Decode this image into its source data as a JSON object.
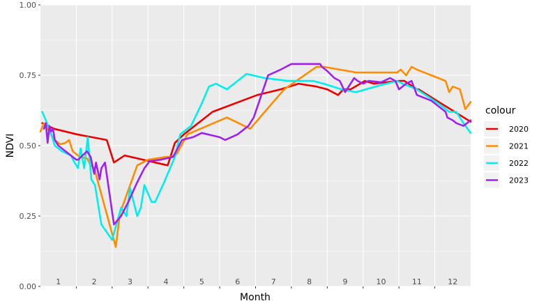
{
  "chart_data": {
    "type": "line",
    "xlabel": "Month",
    "ylabel": "NDVI",
    "ylim": [
      0,
      1
    ],
    "xlim": [
      0.5,
      12.5
    ],
    "y_ticks": [
      0.0,
      0.25,
      0.5,
      0.75,
      1.0
    ],
    "y_tick_labels": [
      "0.00",
      "0.25",
      "0.50",
      "0.75",
      "1.00"
    ],
    "x_tick_labels": [
      "1",
      "2",
      "3",
      "4",
      "5",
      "6",
      "7",
      "8",
      "9",
      "10",
      "11",
      "12"
    ],
    "grid": true,
    "legend": {
      "title": "colour",
      "placement": "right"
    },
    "series": [
      {
        "name": "2020",
        "color": "#ee0000",
        "x": [
          0.55,
          0.88,
          1.52,
          2.35,
          2.55,
          2.85,
          3.7,
          4.05,
          4.25,
          4.5,
          5.3,
          6.55,
          7.2,
          7.7,
          8.2,
          8.5,
          8.8,
          8.95,
          9.15,
          9.55,
          9.8,
          10.5,
          10.5,
          10.65,
          11.0,
          11.05,
          11.8,
          12.5
        ],
        "y": [
          0.58,
          0.56,
          0.54,
          0.52,
          0.44,
          0.465,
          0.44,
          0.43,
          0.51,
          0.54,
          0.62,
          0.68,
          0.7,
          0.72,
          0.71,
          0.7,
          0.68,
          0.7,
          0.7,
          0.73,
          0.72,
          0.73,
          0.73,
          0.73,
          0.7,
          0.7,
          0.64,
          0.585
        ]
      },
      {
        "name": "2021",
        "color": "#ff8c00",
        "x": [
          0.5,
          0.6,
          0.75,
          0.9,
          1.05,
          1.2,
          1.3,
          1.4,
          1.6,
          1.8,
          1.9,
          2.0,
          2.6,
          2.72,
          3.2,
          3.5,
          4.0,
          4.15,
          4.3,
          4.6,
          5.7,
          6.35,
          7.3,
          8.2,
          8.4,
          9.3,
          9.9,
          10.45,
          10.55,
          10.7,
          10.85,
          11.0,
          11.8,
          11.9,
          12.0,
          12.2,
          12.35,
          12.5
        ],
        "y": [
          0.55,
          0.58,
          0.55,
          0.52,
          0.505,
          0.51,
          0.52,
          0.48,
          0.46,
          0.455,
          0.43,
          0.42,
          0.14,
          0.26,
          0.43,
          0.45,
          0.46,
          0.46,
          0.47,
          0.54,
          0.6,
          0.56,
          0.7,
          0.78,
          0.78,
          0.76,
          0.76,
          0.76,
          0.77,
          0.75,
          0.78,
          0.77,
          0.73,
          0.69,
          0.71,
          0.7,
          0.63,
          0.655
        ]
      },
      {
        "name": "2022",
        "color": "#00eeee",
        "x": [
          0.55,
          0.75,
          0.9,
          1.1,
          1.35,
          1.45,
          1.55,
          1.62,
          1.72,
          1.82,
          1.92,
          2.02,
          2.2,
          2.5,
          2.75,
          2.9,
          3.0,
          3.2,
          3.3,
          3.4,
          3.6,
          3.7,
          3.95,
          4.25,
          4.4,
          4.7,
          5.0,
          5.2,
          5.4,
          5.7,
          6.25,
          6.75,
          7.4,
          8.1,
          8.4,
          8.9,
          9.3,
          10.0,
          10.45,
          10.6,
          11.0,
          11.6,
          11.9,
          12.1,
          12.3,
          12.5
        ],
        "y": [
          0.62,
          0.56,
          0.5,
          0.48,
          0.465,
          0.44,
          0.42,
          0.49,
          0.42,
          0.53,
          0.38,
          0.36,
          0.22,
          0.165,
          0.28,
          0.25,
          0.35,
          0.25,
          0.28,
          0.36,
          0.3,
          0.3,
          0.37,
          0.46,
          0.54,
          0.57,
          0.65,
          0.71,
          0.72,
          0.7,
          0.755,
          0.74,
          0.73,
          0.73,
          0.72,
          0.7,
          0.69,
          0.715,
          0.73,
          0.72,
          0.7,
          0.65,
          0.62,
          0.62,
          0.58,
          0.545
        ]
      },
      {
        "name": "2023",
        "color": "#a020f0",
        "x": [
          0.6,
          0.65,
          0.7,
          0.75,
          0.8,
          0.85,
          0.9,
          1.0,
          1.2,
          1.3,
          1.5,
          1.55,
          1.8,
          1.9,
          2.0,
          2.05,
          2.1,
          2.15,
          2.2,
          2.3,
          2.55,
          2.75,
          2.95,
          3.2,
          3.4,
          3.55,
          3.85,
          4.2,
          4.45,
          4.75,
          5.0,
          5.5,
          5.65,
          6.0,
          6.1,
          6.3,
          6.45,
          6.85,
          7.2,
          7.5,
          7.9,
          8.3,
          8.35,
          8.5,
          8.7,
          8.85,
          9.0,
          9.25,
          9.35,
          9.5,
          9.65,
          10.0,
          10.25,
          10.4,
          10.5,
          10.7,
          10.85,
          11.0,
          11.4,
          11.7,
          11.8,
          11.85,
          12.0,
          12.1,
          12.3,
          12.5
        ],
        "y": [
          0.56,
          0.58,
          0.51,
          0.57,
          0.55,
          0.56,
          0.52,
          0.5,
          0.48,
          0.47,
          0.45,
          0.45,
          0.48,
          0.46,
          0.4,
          0.44,
          0.41,
          0.38,
          0.42,
          0.44,
          0.22,
          0.25,
          0.3,
          0.37,
          0.42,
          0.445,
          0.45,
          0.46,
          0.52,
          0.53,
          0.545,
          0.53,
          0.52,
          0.54,
          0.55,
          0.57,
          0.6,
          0.75,
          0.77,
          0.79,
          0.79,
          0.79,
          0.78,
          0.765,
          0.74,
          0.73,
          0.69,
          0.74,
          0.73,
          0.72,
          0.73,
          0.725,
          0.74,
          0.73,
          0.7,
          0.72,
          0.73,
          0.68,
          0.66,
          0.63,
          0.62,
          0.6,
          0.59,
          0.58,
          0.57,
          0.59
        ]
      }
    ]
  }
}
